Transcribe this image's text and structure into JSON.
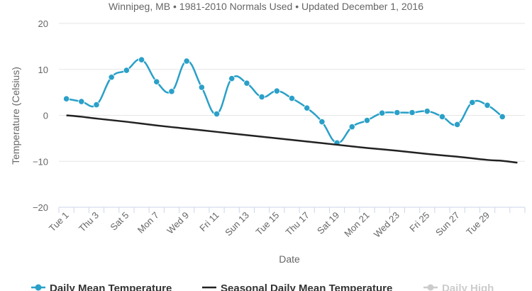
{
  "chart_data": {
    "type": "line",
    "subtitle": "Winnipeg, MB • 1981-2010 Normals Used • Updated December 1, 2016",
    "xlabel": "Date",
    "ylabel": "Temperature (Celsius)",
    "ylim": [
      -20,
      20
    ],
    "yticks": [
      "20",
      "10",
      "0",
      "−10",
      "−20"
    ],
    "ytick_values": [
      20,
      10,
      0,
      -10,
      -20
    ],
    "x_days": [
      1,
      31
    ],
    "x_tick_labels": [
      {
        "day": 1,
        "label": "Tue 1"
      },
      {
        "day": 3,
        "label": "Thu 3"
      },
      {
        "day": 5,
        "label": "Sat 5"
      },
      {
        "day": 7,
        "label": "Mon 7"
      },
      {
        "day": 9,
        "label": "Wed 9"
      },
      {
        "day": 11,
        "label": "Fri 11"
      },
      {
        "day": 13,
        "label": "Sun 13"
      },
      {
        "day": 15,
        "label": "Tue 15"
      },
      {
        "day": 17,
        "label": "Thu 17"
      },
      {
        "day": 19,
        "label": "Sat 19"
      },
      {
        "day": 21,
        "label": "Mon 21"
      },
      {
        "day": 23,
        "label": "Wed 23"
      },
      {
        "day": 25,
        "label": "Fri 25"
      },
      {
        "day": 27,
        "label": "Sun 27"
      },
      {
        "day": 29,
        "label": "Tue 29"
      }
    ],
    "grid": "horizontal",
    "legend_position": "bottom",
    "series": [
      {
        "name": "Daily Mean Temperature",
        "color": "#2aa0c8",
        "markers": true,
        "visible": true,
        "x": [
          1,
          2,
          3,
          4,
          5,
          6,
          7,
          8,
          9,
          10,
          11,
          12,
          13,
          14,
          15,
          16,
          17,
          18,
          19,
          20,
          21,
          22,
          23,
          24,
          25,
          26,
          27,
          28,
          29,
          30
        ],
        "values": [
          3.6,
          3.0,
          2.3,
          8.3,
          9.8,
          12.1,
          7.3,
          5.2,
          11.8,
          6.1,
          0.3,
          8.0,
          7.0,
          4.0,
          5.3,
          3.7,
          1.6,
          -1.4,
          -6.0,
          -2.5,
          -1.1,
          0.5,
          0.6,
          0.6,
          0.9,
          -0.3,
          -2.0,
          2.8,
          2.2,
          -0.3
        ]
      },
      {
        "name": "Seasonal Daily Mean Temperature",
        "color": "#222222",
        "markers": false,
        "visible": true,
        "x": [
          1,
          2,
          3,
          5,
          7,
          9,
          11,
          13,
          15,
          17,
          19,
          21,
          23,
          25,
          27,
          29,
          30,
          31
        ],
        "values": [
          0.0,
          -0.3,
          -0.7,
          -1.4,
          -2.2,
          -2.9,
          -3.6,
          -4.3,
          -5.0,
          -5.7,
          -6.4,
          -7.1,
          -7.7,
          -8.4,
          -9.0,
          -9.7,
          -9.9,
          -10.3
        ]
      },
      {
        "name": "Daily High",
        "color": "#cccccc",
        "markers": true,
        "visible": false,
        "x": [],
        "values": []
      }
    ]
  }
}
